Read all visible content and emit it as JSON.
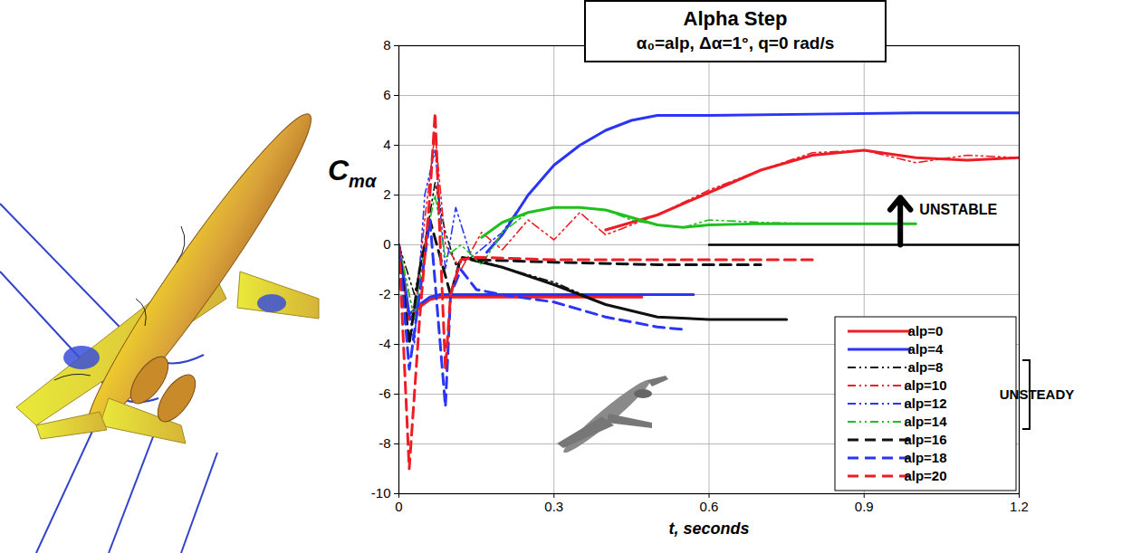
{
  "chart_data": {
    "type": "line",
    "title": "Alpha Step",
    "subtitle": "α₀=alp, Δα=1°, q=0 rad/s",
    "xlabel": "t, seconds",
    "ylabel": "Cmα",
    "xlim": [
      0,
      1.2
    ],
    "xticks": [
      0,
      0.3,
      0.6,
      0.9,
      1.2
    ],
    "ylim": [
      -10,
      8
    ],
    "yticks": [
      -10,
      -8,
      -6,
      -4,
      -2,
      0,
      2,
      4,
      6,
      8
    ],
    "grid": true,
    "legend": "lower right",
    "series": [
      {
        "name": "alp=0",
        "color": "#ee1c25",
        "line_style": "solid",
        "x": [
          0,
          0.02,
          0.04,
          0.06,
          0.08,
          0.1,
          0.2,
          0.3,
          0.47
        ],
        "values": [
          0,
          -3,
          -2.5,
          -2.2,
          -2.1,
          -2.1,
          -2.1,
          -2.1,
          -2.1
        ]
      },
      {
        "name": "alp=4",
        "color": "#2a35f5",
        "line_style": "solid",
        "x": [
          0,
          0.02,
          0.04,
          0.06,
          0.08,
          0.1,
          0.2,
          0.4,
          0.57
        ],
        "values": [
          0,
          -2.8,
          -2.4,
          -2.1,
          -2,
          -2,
          -2,
          -2,
          -2
        ]
      },
      {
        "name": "alp=8",
        "color": "#111111",
        "line_style": "dashdotdot",
        "x": [
          0,
          0.03,
          0.05,
          0.07,
          0.09,
          0.11,
          0.14,
          0.2,
          0.3,
          0.4,
          0.5,
          0.6,
          0.7,
          0.75
        ],
        "values": [
          0,
          -2,
          0,
          2.5,
          0.5,
          -0.8,
          -0.5,
          -0.9,
          -1.5,
          -2.4,
          -2.9,
          -3,
          -3,
          -3
        ],
        "smoothed_x": [
          0.14,
          0.2,
          0.3,
          0.4,
          0.5,
          0.6,
          0.75
        ],
        "smoothed_values": [
          -0.6,
          -0.9,
          -1.6,
          -2.4,
          -2.9,
          -3,
          -3
        ]
      },
      {
        "name": "alp=10",
        "color": "#ee1c25",
        "line_style": "dashdotdot",
        "x": [
          0,
          0.03,
          0.05,
          0.07,
          0.09,
          0.12,
          0.16,
          0.2,
          0.25,
          0.3,
          0.35,
          0.4,
          0.5,
          0.6,
          0.7,
          0.8,
          0.9,
          1.0,
          1.1,
          1.2
        ],
        "values": [
          0,
          -3,
          1,
          4.5,
          0,
          -1,
          0.5,
          -0.2,
          1,
          0.2,
          1.3,
          0.4,
          1.2,
          2.2,
          3,
          3.7,
          3.8,
          3.3,
          3.6,
          3.5
        ],
        "smoothed_x": [
          0.4,
          0.5,
          0.6,
          0.7,
          0.8,
          0.9,
          1.0,
          1.1,
          1.2
        ],
        "smoothed_values": [
          0.6,
          1.2,
          2.1,
          3,
          3.6,
          3.8,
          3.5,
          3.4,
          3.5
        ]
      },
      {
        "name": "alp=12",
        "color": "#2a35f5",
        "line_style": "dashdotdot",
        "x": [
          0,
          0.03,
          0.05,
          0.07,
          0.09,
          0.11,
          0.14,
          0.17,
          0.2,
          0.25,
          0.3,
          0.35,
          0.4,
          0.45,
          0.5,
          0.6,
          0.8,
          1.0,
          1.2
        ],
        "values": [
          0,
          -4,
          2,
          3.8,
          -1,
          1.5,
          -0.5,
          0,
          0.5,
          2,
          3.2,
          4,
          4.6,
          5,
          5.2,
          5.2,
          5.25,
          5.3,
          5.3
        ],
        "smoothed_x": [
          0.17,
          0.2,
          0.25,
          0.3,
          0.35,
          0.4,
          0.45,
          0.5,
          0.6,
          0.8,
          1.0,
          1.2
        ],
        "smoothed_values": [
          -0.3,
          0.4,
          2,
          3.2,
          4,
          4.6,
          5,
          5.2,
          5.2,
          5.25,
          5.3,
          5.3
        ]
      },
      {
        "name": "alp=14",
        "color": "#1fbf1f",
        "line_style": "dashdotdot",
        "x": [
          0,
          0.03,
          0.05,
          0.07,
          0.09,
          0.12,
          0.16,
          0.2,
          0.25,
          0.3,
          0.35,
          0.4,
          0.45,
          0.5,
          0.55,
          0.6,
          0.7,
          0.8,
          0.9,
          1.0
        ],
        "values": [
          0,
          -3,
          0,
          2,
          -0.5,
          0,
          -0.8,
          0.5,
          1.3,
          1.5,
          1.5,
          1.4,
          1,
          0.8,
          0.7,
          1,
          0.9,
          0.85,
          0.85,
          0.85
        ],
        "smoothed_x": [
          0.16,
          0.2,
          0.25,
          0.3,
          0.35,
          0.4,
          0.45,
          0.5,
          0.55,
          0.6,
          0.7,
          0.8,
          0.9,
          1.0
        ],
        "smoothed_values": [
          0.3,
          0.9,
          1.3,
          1.5,
          1.5,
          1.4,
          1.1,
          0.8,
          0.7,
          0.8,
          0.85,
          0.85,
          0.85,
          0.85
        ]
      },
      {
        "name": "alp=16",
        "color": "#111111",
        "line_style": "dashed",
        "x": [
          0,
          0.02,
          0.04,
          0.06,
          0.08,
          0.1,
          0.12,
          0.15,
          0.3,
          0.5,
          0.7
        ],
        "values": [
          0,
          -4,
          -1,
          1,
          -0.5,
          -2,
          -0.5,
          -0.6,
          -0.7,
          -0.8,
          -0.8
        ]
      },
      {
        "name": "alp=18",
        "color": "#2a35f5",
        "line_style": "dashed",
        "x": [
          0,
          0.02,
          0.04,
          0.06,
          0.08,
          0.09,
          0.1,
          0.12,
          0.15,
          0.2,
          0.3,
          0.4,
          0.5,
          0.55
        ],
        "values": [
          0,
          -5,
          -2,
          1,
          -4,
          -6.5,
          -2,
          -1,
          -1.8,
          -2,
          -2.3,
          -2.9,
          -3.3,
          -3.4
        ]
      },
      {
        "name": "alp=20",
        "color": "#ee1c25",
        "line_style": "dashed",
        "x": [
          0,
          0.02,
          0.04,
          0.06,
          0.07,
          0.08,
          0.09,
          0.1,
          0.12,
          0.15,
          0.3,
          0.5,
          0.8
        ],
        "values": [
          0,
          -9,
          -3,
          2,
          5.3,
          0,
          -5,
          -2,
          -0.6,
          -0.5,
          -0.6,
          -0.6,
          -0.6
        ]
      }
    ],
    "legend_groups": [
      {
        "label": "UNSTEADY",
        "series": [
          "alp=8",
          "alp=10",
          "alp=12",
          "alp=14"
        ]
      }
    ],
    "reference_line": {
      "y": 0,
      "x": [
        0.6,
        1.2
      ]
    },
    "annotations": [
      {
        "text": "UNSTABLE",
        "x": 1.0,
        "y": 1.4,
        "arrow": {
          "x": 0.97,
          "y": [
            0,
            1.9
          ]
        }
      }
    ]
  }
}
